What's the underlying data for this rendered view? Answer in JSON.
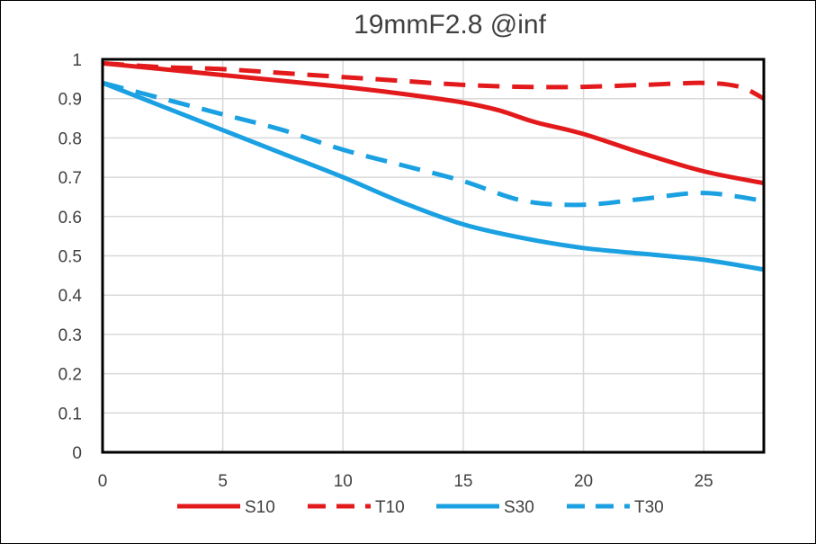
{
  "chart_data": {
    "type": "line",
    "title": "19mmF2.8 @inf",
    "xlabel": "",
    "ylabel": "",
    "xlim": [
      0,
      27.5
    ],
    "ylim": [
      0,
      1
    ],
    "x_ticks": [
      0,
      5,
      10,
      15,
      20,
      25
    ],
    "y_ticks": [
      0,
      0.1,
      0.2,
      0.3,
      0.4,
      0.5,
      0.6,
      0.7,
      0.8,
      0.9,
      1
    ],
    "x_tick_labels": [
      "0",
      "5",
      "10",
      "15",
      "20",
      "25"
    ],
    "y_tick_labels": [
      "0",
      "0.1",
      "0.2",
      "0.3",
      "0.4",
      "0.5",
      "0.6",
      "0.7",
      "0.8",
      "0.9",
      "1"
    ],
    "grid": true,
    "legend_position": "bottom",
    "series": [
      {
        "name": "S10",
        "color": "#e31a1c",
        "dash": "solid",
        "points": [
          [
            0,
            0.99
          ],
          [
            2.5,
            0.975
          ],
          [
            5,
            0.96
          ],
          [
            7.5,
            0.945
          ],
          [
            10,
            0.93
          ],
          [
            12.5,
            0.912
          ],
          [
            15,
            0.89
          ],
          [
            16.5,
            0.87
          ],
          [
            18,
            0.84
          ],
          [
            20,
            0.81
          ],
          [
            22.5,
            0.76
          ],
          [
            25,
            0.715
          ],
          [
            27.5,
            0.685
          ]
        ]
      },
      {
        "name": "T10",
        "color": "#e31a1c",
        "dash": "dashed",
        "points": [
          [
            0,
            0.99
          ],
          [
            2.5,
            0.98
          ],
          [
            5,
            0.975
          ],
          [
            7.5,
            0.965
          ],
          [
            10,
            0.955
          ],
          [
            12.5,
            0.945
          ],
          [
            15,
            0.935
          ],
          [
            17.5,
            0.93
          ],
          [
            20,
            0.93
          ],
          [
            22.5,
            0.935
          ],
          [
            25,
            0.94
          ],
          [
            26.5,
            0.93
          ],
          [
            27.5,
            0.9
          ]
        ]
      },
      {
        "name": "S30",
        "color": "#1ba1e2",
        "dash": "solid",
        "points": [
          [
            0,
            0.94
          ],
          [
            2.5,
            0.88
          ],
          [
            5,
            0.82
          ],
          [
            7.5,
            0.76
          ],
          [
            10,
            0.7
          ],
          [
            12.5,
            0.635
          ],
          [
            15,
            0.58
          ],
          [
            17.5,
            0.545
          ],
          [
            20,
            0.52
          ],
          [
            22.5,
            0.505
          ],
          [
            25,
            0.49
          ],
          [
            27.5,
            0.465
          ]
        ]
      },
      {
        "name": "T30",
        "color": "#1ba1e2",
        "dash": "dashed",
        "points": [
          [
            0,
            0.94
          ],
          [
            2.5,
            0.9
          ],
          [
            5,
            0.86
          ],
          [
            7.5,
            0.82
          ],
          [
            10,
            0.77
          ],
          [
            12.5,
            0.73
          ],
          [
            15,
            0.69
          ],
          [
            17.5,
            0.64
          ],
          [
            20,
            0.63
          ],
          [
            22.5,
            0.645
          ],
          [
            25,
            0.66
          ],
          [
            27.5,
            0.64
          ]
        ]
      }
    ]
  }
}
